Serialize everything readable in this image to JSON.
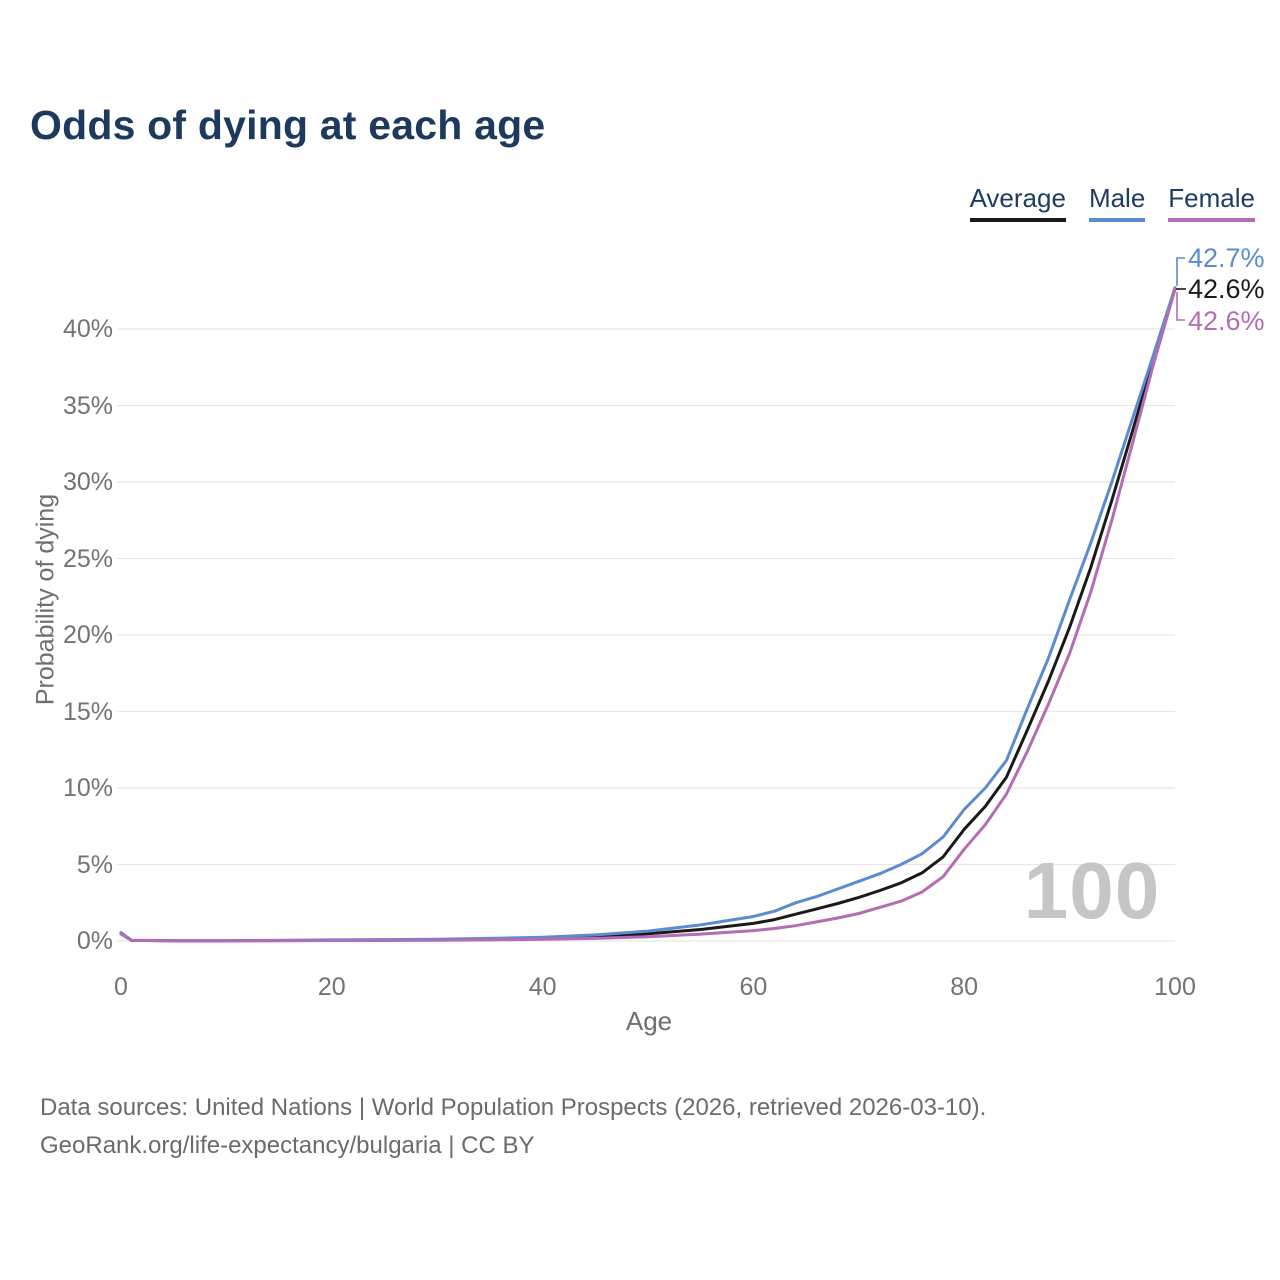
{
  "title": "Odds of dying at each age",
  "axes": {
    "x_label": "Age",
    "y_label": "Probability of dying",
    "x_ticks": [
      "0",
      "20",
      "40",
      "60",
      "80",
      "100"
    ],
    "y_ticks": [
      "0%",
      "5%",
      "10%",
      "15%",
      "20%",
      "25%",
      "30%",
      "35%",
      "40%"
    ]
  },
  "watermark": "100",
  "footer": {
    "line1": "Data sources: United Nations | World Population Prospects (2026, retrieved 2026-03-10).",
    "line2": "GeoRank.org/life-expectancy/bulgaria | CC BY"
  },
  "colors": {
    "title": "#1c3a5e",
    "grid": "#e7e7e7",
    "tick_text": "#737373",
    "watermark": "#c6c6c6"
  },
  "chart_data": {
    "type": "line",
    "title": "Odds of dying at each age",
    "xlabel": "Age",
    "ylabel": "Probability of dying",
    "xlim": [
      0,
      100
    ],
    "ylim_percent": [
      0,
      44
    ],
    "grid": "horizontal-only",
    "legend_position": "top-right",
    "x_ages": [
      0,
      1,
      5,
      10,
      15,
      20,
      25,
      30,
      35,
      40,
      45,
      50,
      55,
      60,
      62,
      64,
      66,
      68,
      70,
      72,
      74,
      76,
      78,
      80,
      82,
      84,
      86,
      88,
      90,
      92,
      94,
      96,
      98,
      100
    ],
    "series": [
      {
        "name": "Average",
        "color": "#1a1a1a",
        "end_label": "42.6%",
        "values_percent": [
          0.5,
          0.04,
          0.02,
          0.02,
          0.03,
          0.05,
          0.06,
          0.09,
          0.12,
          0.18,
          0.29,
          0.47,
          0.75,
          1.15,
          1.4,
          1.75,
          2.1,
          2.45,
          2.85,
          3.3,
          3.8,
          4.45,
          5.5,
          7.3,
          8.8,
          10.7,
          13.8,
          17.0,
          20.5,
          24.4,
          28.8,
          33.4,
          38.1,
          42.6
        ]
      },
      {
        "name": "Male",
        "color": "#5b8bd0",
        "end_label": "42.7%",
        "values_percent": [
          0.55,
          0.05,
          0.02,
          0.02,
          0.04,
          0.07,
          0.09,
          0.12,
          0.17,
          0.25,
          0.4,
          0.65,
          1.05,
          1.6,
          1.95,
          2.5,
          2.9,
          3.4,
          3.9,
          4.4,
          5.0,
          5.7,
          6.8,
          8.6,
          10.0,
          11.8,
          15.2,
          18.5,
          22.3,
          26.0,
          30.0,
          34.2,
          38.4,
          42.7
        ]
      },
      {
        "name": "Female",
        "color": "#b46cb4",
        "end_label": "42.6%",
        "values_percent": [
          0.45,
          0.04,
          0.015,
          0.015,
          0.02,
          0.03,
          0.03,
          0.05,
          0.07,
          0.11,
          0.17,
          0.28,
          0.45,
          0.68,
          0.82,
          1.0,
          1.25,
          1.5,
          1.8,
          2.2,
          2.6,
          3.2,
          4.2,
          6.0,
          7.6,
          9.6,
          12.4,
          15.5,
          18.8,
          22.8,
          27.5,
          32.6,
          37.8,
          42.6
        ]
      }
    ]
  }
}
